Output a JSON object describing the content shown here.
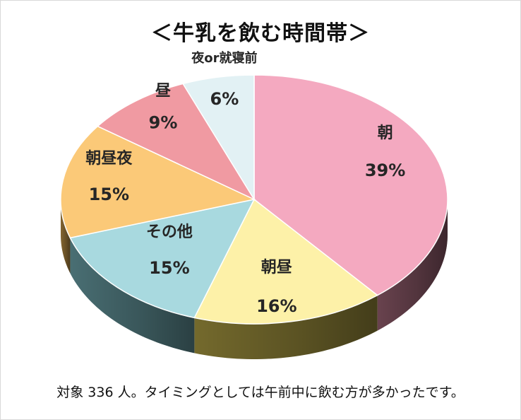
{
  "chart_data": {
    "type": "pie",
    "title": "＜牛乳を飲む時間帯＞",
    "slices": [
      {
        "label": "朝",
        "value": 39,
        "value_label": "39%",
        "color": "#f4a9c0",
        "side": "#6e4652"
      },
      {
        "label": "朝昼",
        "value": 16,
        "value_label": "16%",
        "color": "#fdf1a8",
        "side": "#7a6f2f"
      },
      {
        "label": "その他",
        "value": 15,
        "value_label": "15%",
        "color": "#a8d9df",
        "side": "#4d7479"
      },
      {
        "label": "朝昼夜",
        "value": 15,
        "value_label": "15%",
        "color": "#fbc978",
        "side": "#8a6a33"
      },
      {
        "label": "昼",
        "value": 9,
        "value_label": "9%",
        "color": "#f09aa2",
        "side": "#8a5257"
      },
      {
        "label": "夜or就寝前",
        "value": 6,
        "value_label": "6%",
        "color": "#e2f1f4",
        "side": "#8aa0a4"
      }
    ],
    "caption": "対象 336 人。タイミングとしては午前中に飲む方が多かったです。"
  }
}
